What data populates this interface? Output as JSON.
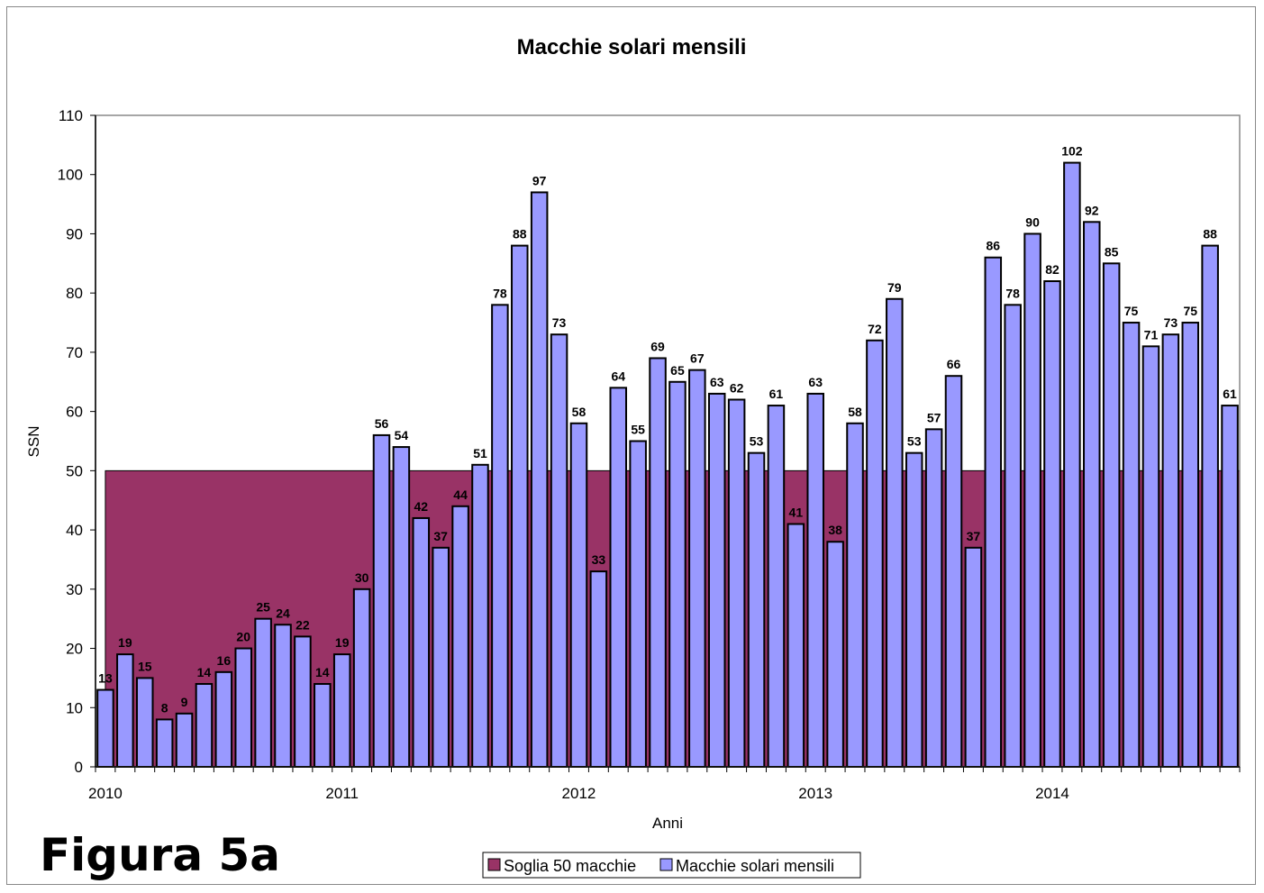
{
  "figure_label": "Figura 5a",
  "chart_data": {
    "type": "bar",
    "title": "Macchie solari mensili",
    "xlabel": "Anni",
    "ylabel": "SSN",
    "ylim": [
      0,
      110
    ],
    "yticks": [
      0,
      10,
      20,
      30,
      40,
      50,
      60,
      70,
      80,
      90,
      100,
      110
    ],
    "xtick_labels": [
      "2010",
      "2011",
      "2012",
      "2013",
      "2014"
    ],
    "xtick_every": 12,
    "grid": false,
    "legend_position": "bottom",
    "series": [
      {
        "name": "Soglia 50 macchie",
        "type": "area",
        "value": 50,
        "color": "#993366"
      },
      {
        "name": "Macchie solari mensili",
        "type": "bar",
        "color": "#9999ff",
        "values": [
          13,
          19,
          15,
          8,
          9,
          14,
          16,
          20,
          25,
          24,
          22,
          14,
          19,
          30,
          56,
          54,
          42,
          37,
          44,
          51,
          78,
          88,
          97,
          73,
          58,
          33,
          64,
          55,
          69,
          65,
          67,
          63,
          62,
          53,
          61,
          41,
          63,
          38,
          58,
          72,
          79,
          53,
          57,
          66,
          37,
          86,
          78,
          90,
          82,
          102,
          92,
          85,
          75,
          71,
          73,
          75,
          88,
          61
        ]
      }
    ]
  }
}
